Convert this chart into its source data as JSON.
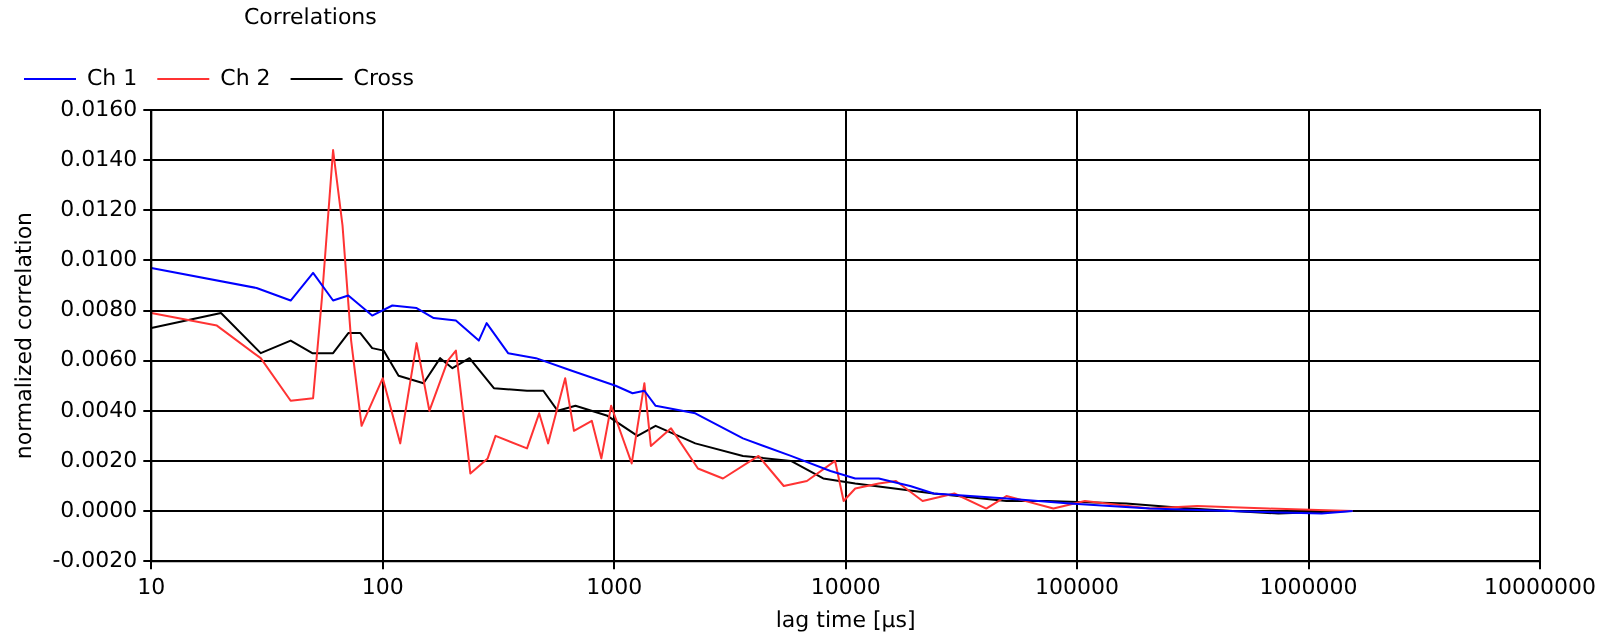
{
  "chart_data": {
    "type": "line",
    "title": "Correlations",
    "xlabel": "lag time [µs]",
    "ylabel": "normalized correlation",
    "log": "x",
    "grid": true,
    "legend": "top left",
    "marker": "none",
    "line_style": "solid",
    "xlim": [
      10,
      10000000
    ],
    "xticks": [
      10,
      100,
      1000,
      10000,
      100000,
      1000000,
      10000000
    ],
    "ylim": [
      -0.002,
      0.016
    ],
    "yticks": [
      {
        "value": -0.002,
        "label": "-0.0020"
      },
      {
        "value": 0,
        "label": "0.0000"
      },
      {
        "value": 0.002,
        "label": "0.0020"
      },
      {
        "value": 0.004,
        "label": "0.0040"
      },
      {
        "value": 0.006,
        "label": "0.0060"
      },
      {
        "value": 0.008,
        "label": "0.0080"
      },
      {
        "value": 0.01,
        "label": "0.0100"
      },
      {
        "value": 0.012,
        "label": "0.0120"
      },
      {
        "value": 0.014,
        "label": "0.0140"
      },
      {
        "value": 0.016,
        "label": "0.0160"
      }
    ],
    "series": [
      {
        "name": "Ch 1",
        "color": "#0000ff",
        "x": [
          10,
          28.5,
          40,
          50,
          61,
          71,
          90,
          110,
          140,
          166,
          207,
          260,
          281,
          348,
          459,
          656,
          1014,
          1200,
          1350,
          1510,
          2240,
          3600,
          5800,
          8600,
          11000,
          13900,
          19000,
          24000,
          49500,
          93000,
          206000,
          457000,
          1140000,
          1550000
        ],
        "values": [
          0.0097,
          0.0089,
          0.0084,
          0.0095,
          0.0084,
          0.0086,
          0.0078,
          0.0082,
          0.0081,
          0.0077,
          0.0076,
          0.0068,
          0.0075,
          0.0063,
          0.0061,
          0.0056,
          0.005,
          0.0047,
          0.0048,
          0.0042,
          0.0039,
          0.0029,
          0.0022,
          0.0016,
          0.0013,
          0.0013,
          0.001,
          0.0007,
          0.0005,
          0.0003,
          0.0001,
          0.0,
          -0.0001,
          0.0
        ]
      },
      {
        "name": "Ch 2",
        "color": "#ff3333",
        "x": [
          10,
          19.2,
          29.7,
          40,
          50,
          54.6,
          61,
          67,
          73,
          81,
          100,
          119,
          140,
          159,
          191,
          207,
          239,
          284,
          307,
          420,
          474,
          518,
          614,
          670,
          800,
          880,
          970,
          1190,
          1350,
          1440,
          1760,
          2300,
          2950,
          4200,
          5400,
          6800,
          9000,
          9800,
          11000,
          13900,
          16500,
          21500,
          29500,
          40500,
          49500,
          79000,
          108000,
          206000,
          330000,
          670000,
          1550000
        ],
        "values": [
          0.0079,
          0.0074,
          0.0061,
          0.0044,
          0.0045,
          0.0085,
          0.0144,
          0.0114,
          0.0068,
          0.0034,
          0.0053,
          0.0027,
          0.0067,
          0.004,
          0.006,
          0.0064,
          0.0015,
          0.0021,
          0.003,
          0.0025,
          0.0039,
          0.0027,
          0.0053,
          0.0032,
          0.0036,
          0.0021,
          0.0042,
          0.0019,
          0.0051,
          0.0026,
          0.0033,
          0.0017,
          0.0013,
          0.0022,
          0.001,
          0.0012,
          0.002,
          0.0004,
          0.0009,
          0.0011,
          0.0012,
          0.0004,
          0.0007,
          0.0001,
          0.0006,
          0.0001,
          0.0004,
          0.0001,
          0.0002,
          0.0001,
          0.0
        ]
      },
      {
        "name": "Cross",
        "color": "#000000",
        "x": [
          10,
          20,
          29.7,
          40,
          49.6,
          61,
          71,
          80,
          90,
          101,
          117,
          150,
          177,
          200,
          237,
          302,
          420,
          494,
          570,
          680,
          935,
          1260,
          1510,
          2240,
          3600,
          5800,
          8000,
          11000,
          24000,
          49500,
          73600,
          163000,
          308000,
          740000,
          1500000
        ],
        "values": [
          0.0073,
          0.0079,
          0.0063,
          0.0068,
          0.0063,
          0.0063,
          0.0071,
          0.0071,
          0.0065,
          0.0064,
          0.0054,
          0.0051,
          0.0061,
          0.0057,
          0.0061,
          0.0049,
          0.0048,
          0.0048,
          0.004,
          0.0042,
          0.0038,
          0.003,
          0.0034,
          0.0027,
          0.0022,
          0.002,
          0.0013,
          0.0011,
          0.0007,
          0.0004,
          0.0004,
          0.0003,
          0.0001,
          -0.0001,
          0.0
        ]
      }
    ]
  }
}
